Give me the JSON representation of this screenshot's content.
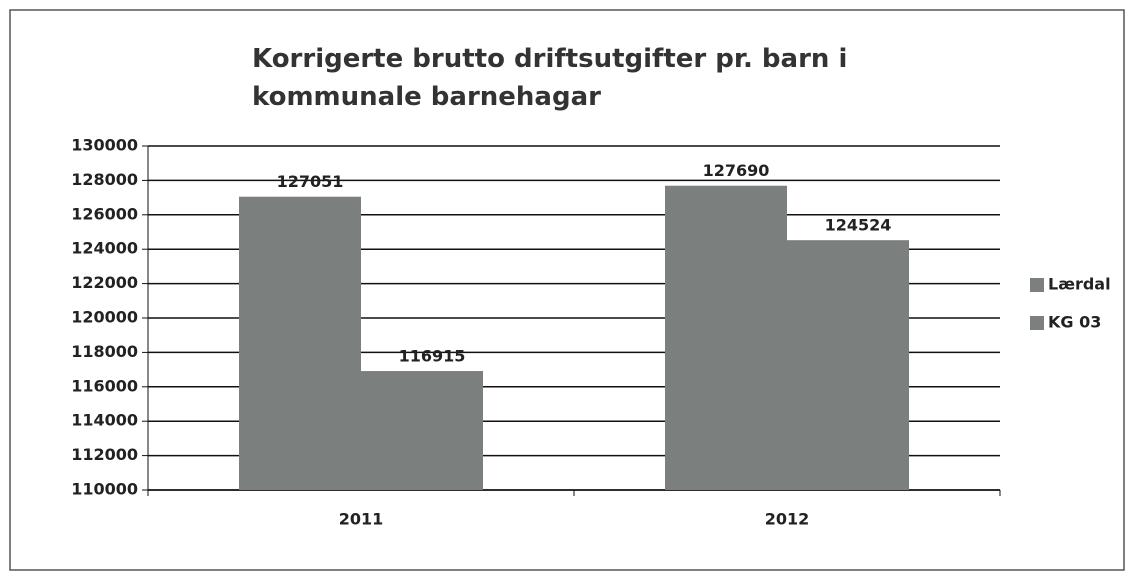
{
  "chart_data": {
    "type": "bar",
    "title": "Korrigerte brutto driftsutgifter pr. barn i kommunale barnehagar",
    "categories": [
      "2011",
      "2012"
    ],
    "series": [
      {
        "name": "Lærdal",
        "color": "#7b7f7d",
        "values": [
          127051,
          127690
        ]
      },
      {
        "name": "KG 03",
        "color": "#7b7f7d",
        "values": [
          116915,
          124524
        ]
      }
    ],
    "ylim": [
      110000,
      130000
    ],
    "yticks": [
      110000,
      112000,
      114000,
      116000,
      118000,
      120000,
      122000,
      124000,
      126000,
      128000,
      130000
    ],
    "grid": true,
    "legend": "right"
  }
}
